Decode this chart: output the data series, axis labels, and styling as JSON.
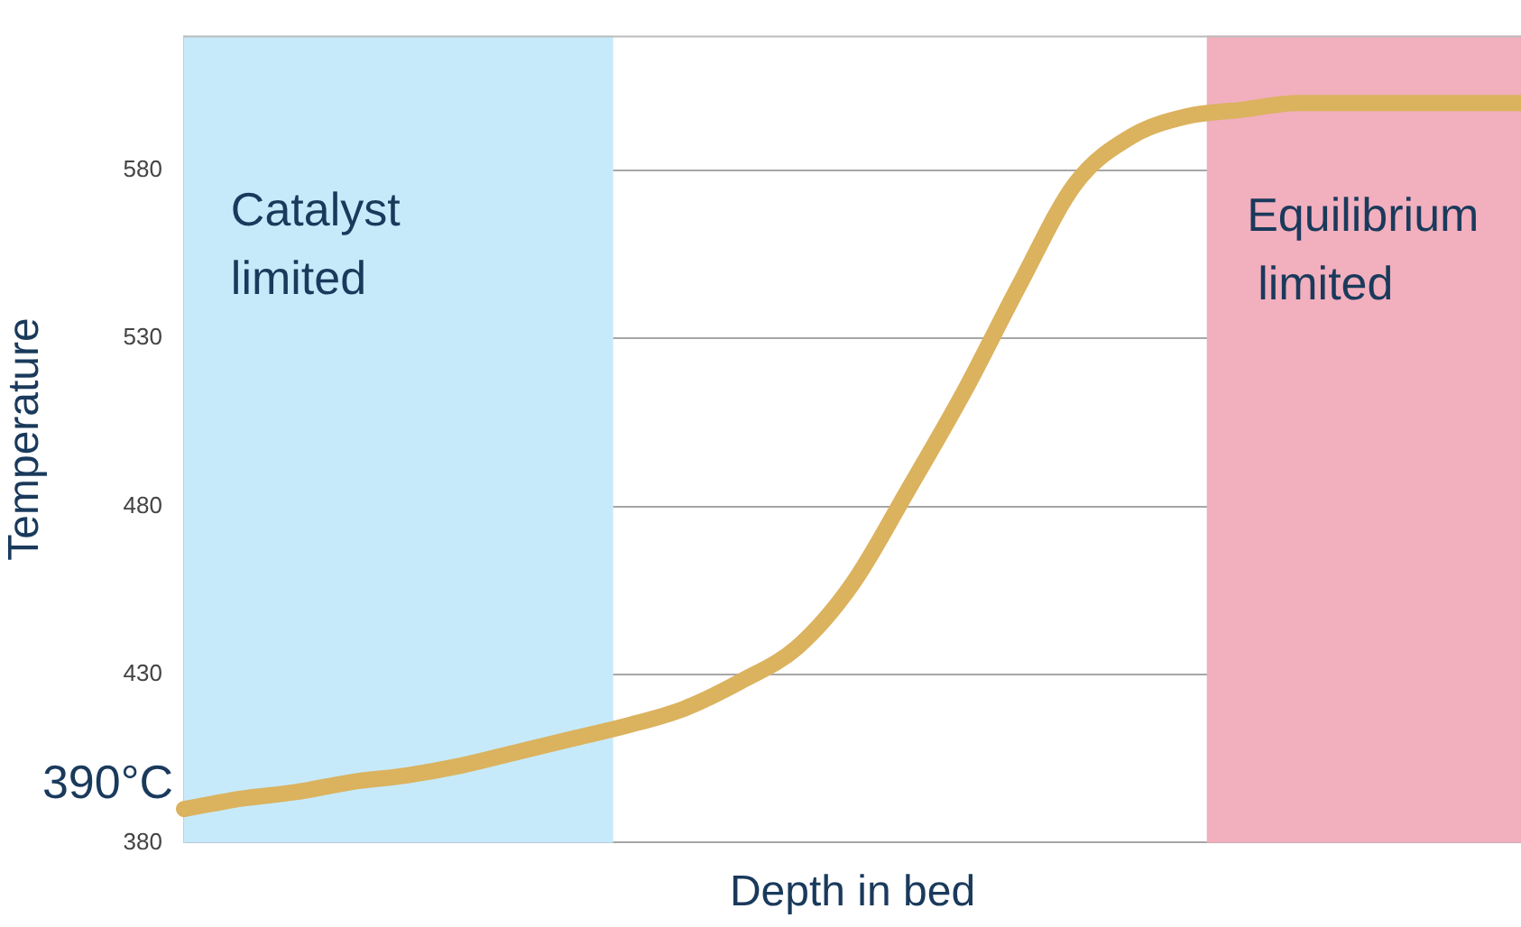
{
  "chart_data": {
    "type": "line",
    "xlabel": "Depth in bed",
    "ylabel": "Temperature",
    "categories": [
      null,
      null,
      null,
      null,
      null,
      null,
      null,
      null,
      null,
      null,
      null,
      null,
      null,
      null,
      null,
      null,
      null,
      null,
      null,
      null,
      null,
      null,
      null,
      null,
      null
    ],
    "series": [
      {
        "color": "#dbb25e",
        "values": [
          390,
          393,
          395,
          398,
          400,
          403,
          407,
          411,
          415,
          420,
          428,
          438,
          457,
          485,
          514,
          546,
          576,
          590,
          596,
          598,
          600,
          600,
          600,
          600,
          600
        ]
      }
    ],
    "ylim": [
      380,
      620
    ],
    "yticks": [
      380,
      430,
      480,
      530,
      580
    ],
    "grid": "y",
    "legend": false,
    "marker": "none",
    "line_style": "solid",
    "annotations": [
      "Catalyst limited",
      "Equilibrium limited",
      "390°C"
    ]
  }
}
